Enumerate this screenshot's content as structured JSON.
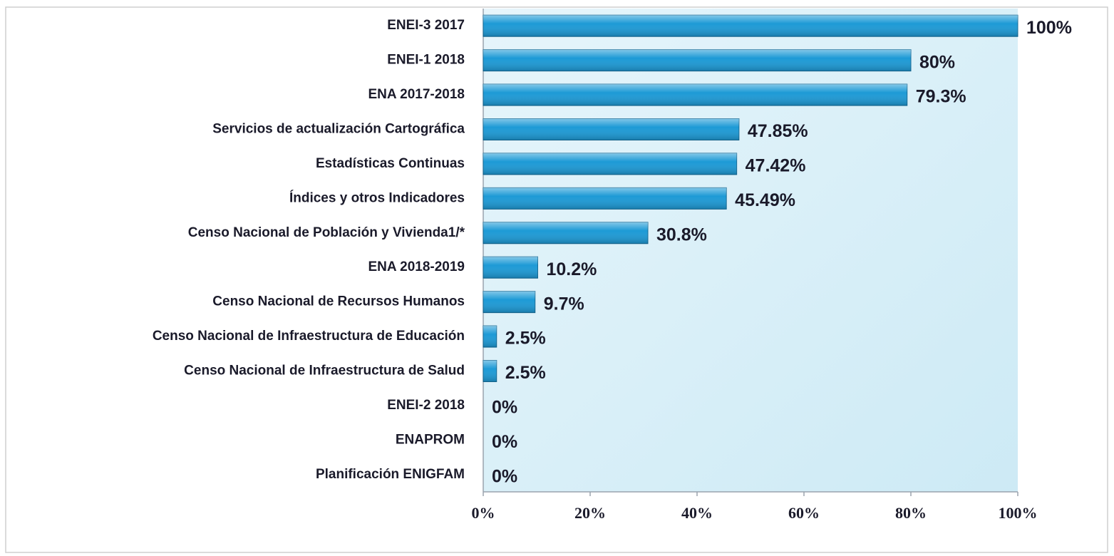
{
  "chart_data": {
    "type": "barh",
    "color": "#1d9ad6",
    "categories": [
      "ENEI-3 2017",
      "ENEI-1 2018",
      "ENA 2017-2018",
      "Servicios de actualización Cartográfica",
      "Estadísticas Continuas",
      "Índices y otros Indicadores",
      "Censo Nacional de Población y Vivienda1/*",
      "ENA 2018-2019",
      "Censo Nacional de Recursos Humanos",
      "Censo Nacional de Infraestructura de Educación",
      "Censo Nacional de Infraestructura de Salud",
      "ENEI-2 2018",
      "ENAPROM",
      "Planificación ENIGFAM"
    ],
    "values": [
      100,
      80,
      79.3,
      47.85,
      47.42,
      45.49,
      30.8,
      10.2,
      9.7,
      2.5,
      2.5,
      0,
      0,
      0
    ],
    "value_labels": [
      "100%",
      "80%",
      "79.3%",
      "47.85%",
      "47.42%",
      "45.49%",
      "30.8%",
      "10.2%",
      "9.7%",
      "2.5%",
      "2.5%",
      "0%",
      "0%",
      "0%"
    ],
    "xlim": [
      0,
      100
    ],
    "xticks": [
      {
        "value": 0,
        "label": "0%"
      },
      {
        "value": 20,
        "label": "20%"
      },
      {
        "value": 40,
        "label": "40%"
      },
      {
        "value": 60,
        "label": "60%"
      },
      {
        "value": 80,
        "label": "80%"
      },
      {
        "value": 100,
        "label": "100%"
      }
    ]
  }
}
